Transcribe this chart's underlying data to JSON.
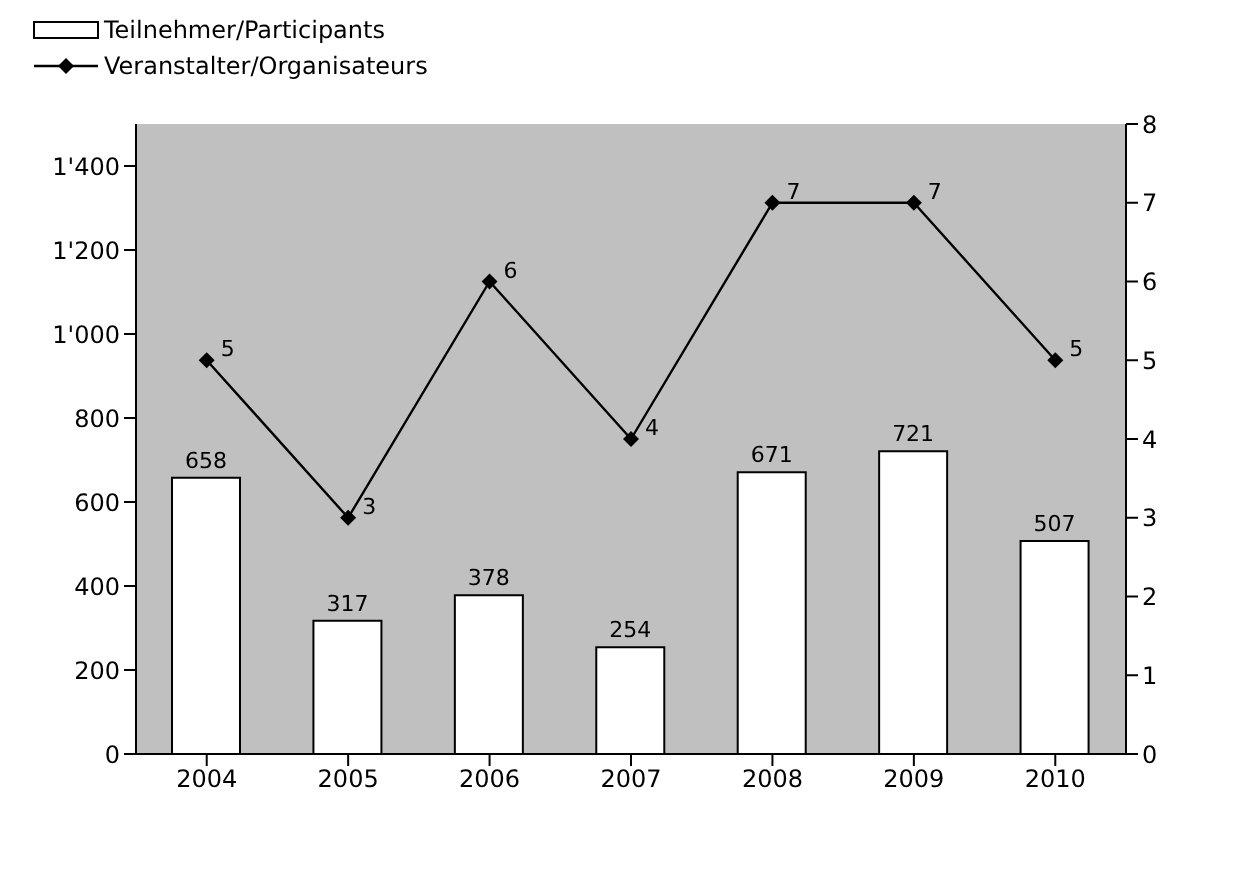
{
  "chart_data": {
    "type": "bar",
    "categories": [
      "2004",
      "2005",
      "2006",
      "2007",
      "2008",
      "2009",
      "2010"
    ],
    "series": [
      {
        "name": "Teilnehmer/Participants",
        "color": "#ffffff",
        "values": [
          658,
          317,
          378,
          254,
          671,
          721,
          507
        ]
      },
      {
        "name": "Veranstalter/Organisateurs",
        "type": "line",
        "axis": "y2",
        "color": "#000000",
        "marker": "diamond",
        "values": [
          5,
          3,
          6,
          4,
          7,
          7,
          5
        ]
      }
    ],
    "ylim": [
      0,
      1500
    ],
    "yticks": [
      0,
      200,
      400,
      600,
      800,
      {
        "value": 1000,
        "label": "1'000"
      },
      {
        "value": 1200,
        "label": "1'200"
      },
      {
        "value": 1400,
        "label": "1'400"
      }
    ],
    "y2lim": [
      0,
      8
    ],
    "y2ticks": [
      0,
      1,
      2,
      3,
      4,
      5,
      6,
      7,
      8
    ],
    "data_labels": true,
    "legend": "top left"
  }
}
